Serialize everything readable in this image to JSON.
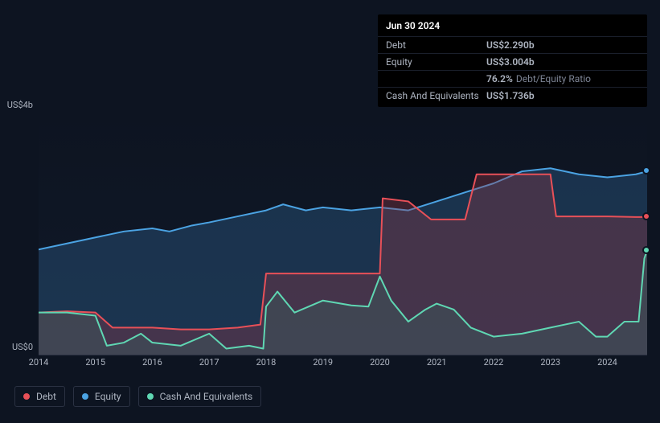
{
  "tooltip": {
    "date": "Jun 30 2024",
    "rows": [
      {
        "label": "Debt",
        "value": "US$2.290b",
        "cls": "val-debt"
      },
      {
        "label": "Equity",
        "value": "US$3.004b",
        "cls": "val-equity"
      },
      {
        "label": "",
        "value": "76.2%",
        "cls": "val-ratio",
        "suffix": "Debt/Equity Ratio"
      },
      {
        "label": "Cash And Equivalents",
        "value": "US$1.736b",
        "cls": "val-cash"
      }
    ]
  },
  "yaxis": {
    "top": "US$4b",
    "bottom": "US$0"
  },
  "xaxis": {
    "ticks": [
      "2014",
      "2015",
      "2016",
      "2017",
      "2018",
      "2019",
      "2020",
      "2021",
      "2022",
      "2023",
      "2024"
    ],
    "start": 2014,
    "end": 2024.7
  },
  "chart": {
    "ylim": [
      0,
      4
    ],
    "background": "#0d1421",
    "grid_color": "#2a3142",
    "series": {
      "equity": {
        "color": "#4ba3e3",
        "fill": "rgba(43,86,128,0.45)",
        "stroke_width": 2,
        "data": [
          [
            2014,
            1.75
          ],
          [
            2014.5,
            1.85
          ],
          [
            2015,
            1.95
          ],
          [
            2015.5,
            2.05
          ],
          [
            2016,
            2.1
          ],
          [
            2016.3,
            2.05
          ],
          [
            2016.7,
            2.15
          ],
          [
            2017,
            2.2
          ],
          [
            2017.5,
            2.3
          ],
          [
            2018,
            2.4
          ],
          [
            2018.3,
            2.5
          ],
          [
            2018.7,
            2.4
          ],
          [
            2019,
            2.45
          ],
          [
            2019.5,
            2.4
          ],
          [
            2020,
            2.45
          ],
          [
            2020.5,
            2.4
          ],
          [
            2021,
            2.55
          ],
          [
            2021.5,
            2.7
          ],
          [
            2022,
            2.85
          ],
          [
            2022.5,
            3.05
          ],
          [
            2023,
            3.1
          ],
          [
            2023.5,
            3.0
          ],
          [
            2024,
            2.95
          ],
          [
            2024.5,
            3.0
          ],
          [
            2024.7,
            3.05
          ]
        ]
      },
      "debt": {
        "color": "#e85058",
        "fill": "rgba(150,55,70,0.35)",
        "stroke_width": 2,
        "data": [
          [
            2014,
            0.7
          ],
          [
            2014.5,
            0.72
          ],
          [
            2015,
            0.7
          ],
          [
            2015.3,
            0.45
          ],
          [
            2015.7,
            0.45
          ],
          [
            2016,
            0.45
          ],
          [
            2016.5,
            0.42
          ],
          [
            2017,
            0.42
          ],
          [
            2017.5,
            0.45
          ],
          [
            2017.9,
            0.5
          ],
          [
            2018,
            1.35
          ],
          [
            2018.5,
            1.35
          ],
          [
            2019,
            1.35
          ],
          [
            2019.5,
            1.35
          ],
          [
            2020,
            1.35
          ],
          [
            2020.05,
            2.6
          ],
          [
            2020.5,
            2.55
          ],
          [
            2020.9,
            2.25
          ],
          [
            2021,
            2.25
          ],
          [
            2021.5,
            2.25
          ],
          [
            2021.7,
            3.0
          ],
          [
            2022,
            3.0
          ],
          [
            2022.5,
            3.0
          ],
          [
            2023,
            3.0
          ],
          [
            2023.1,
            2.3
          ],
          [
            2023.5,
            2.3
          ],
          [
            2024,
            2.3
          ],
          [
            2024.5,
            2.29
          ],
          [
            2024.7,
            2.29
          ]
        ]
      },
      "cash": {
        "color": "#5fd7b3",
        "fill": "rgba(50,120,105,0.25)",
        "stroke_width": 2,
        "data": [
          [
            2014,
            0.7
          ],
          [
            2014.5,
            0.7
          ],
          [
            2015,
            0.65
          ],
          [
            2015.2,
            0.15
          ],
          [
            2015.5,
            0.2
          ],
          [
            2015.8,
            0.35
          ],
          [
            2016,
            0.2
          ],
          [
            2016.5,
            0.15
          ],
          [
            2017,
            0.35
          ],
          [
            2017.3,
            0.1
          ],
          [
            2017.7,
            0.15
          ],
          [
            2017.95,
            0.1
          ],
          [
            2018,
            0.8
          ],
          [
            2018.2,
            1.05
          ],
          [
            2018.5,
            0.7
          ],
          [
            2019,
            0.9
          ],
          [
            2019.5,
            0.82
          ],
          [
            2019.8,
            0.8
          ],
          [
            2020,
            1.3
          ],
          [
            2020.2,
            0.9
          ],
          [
            2020.5,
            0.55
          ],
          [
            2020.8,
            0.75
          ],
          [
            2021,
            0.85
          ],
          [
            2021.3,
            0.75
          ],
          [
            2021.6,
            0.45
          ],
          [
            2022,
            0.3
          ],
          [
            2022.5,
            0.35
          ],
          [
            2023,
            0.45
          ],
          [
            2023.5,
            0.55
          ],
          [
            2023.8,
            0.3
          ],
          [
            2024,
            0.3
          ],
          [
            2024.3,
            0.55
          ],
          [
            2024.55,
            0.55
          ],
          [
            2024.65,
            1.6
          ],
          [
            2024.7,
            1.74
          ]
        ]
      }
    },
    "end_markers": [
      {
        "series": "equity",
        "x": 2024.7,
        "y": 3.05,
        "color": "#4ba3e3"
      },
      {
        "series": "debt",
        "x": 2024.7,
        "y": 2.29,
        "color": "#e85058"
      },
      {
        "series": "cash",
        "x": 2024.7,
        "y": 1.74,
        "color": "#5fd7b3"
      }
    ]
  },
  "legend": [
    {
      "label": "Debt",
      "dot": "dot-debt",
      "name": "legend-debt"
    },
    {
      "label": "Equity",
      "dot": "dot-equity",
      "name": "legend-equity"
    },
    {
      "label": "Cash And Equivalents",
      "dot": "dot-cash",
      "name": "legend-cash"
    }
  ]
}
